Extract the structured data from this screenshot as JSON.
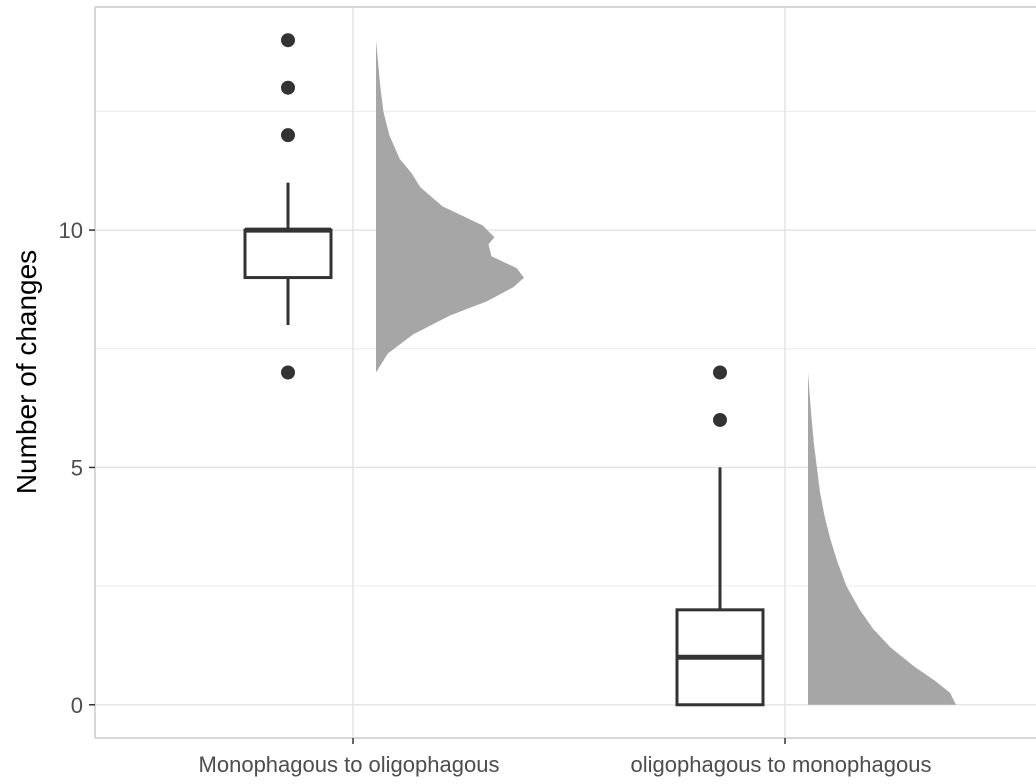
{
  "chart_data": {
    "type": "raincloud",
    "title": "",
    "xlabel": "",
    "ylabel": "Number of changes",
    "ylim": [
      -0.7,
      14.7
    ],
    "yticks": [
      0,
      5,
      10
    ],
    "ytick_labels": [
      "0",
      "5",
      "10"
    ],
    "categories": [
      "Monophagous to oligophagous",
      "oligophagous to monophagous"
    ],
    "grid": true,
    "colors": {
      "box_stroke": "#333333",
      "outlier": "#333333",
      "density_fill": "#a6a6a6",
      "grid": "#e0e0e0",
      "panel_border": "#cccccc"
    },
    "boxes": [
      {
        "category": "Monophagous to oligophagous",
        "whisker_low": 8,
        "q1": 9,
        "median": 10,
        "q3": 10,
        "whisker_high": 11,
        "outliers": [
          7,
          12,
          13,
          14
        ]
      },
      {
        "category": "oligophagous to monophagous",
        "whisker_low": 0,
        "q1": 0,
        "median": 1,
        "q3": 2,
        "whisker_high": 5,
        "outliers": [
          6,
          7
        ]
      }
    ],
    "densities": [
      {
        "category": "Monophagous to oligophagous",
        "points": [
          [
            7,
            0.0
          ],
          [
            7.4,
            0.08
          ],
          [
            7.8,
            0.25
          ],
          [
            8.2,
            0.5
          ],
          [
            8.5,
            0.75
          ],
          [
            8.8,
            0.93
          ],
          [
            9.0,
            1.0
          ],
          [
            9.2,
            0.95
          ],
          [
            9.45,
            0.78
          ],
          [
            9.7,
            0.76
          ],
          [
            9.85,
            0.8
          ],
          [
            10.1,
            0.72
          ],
          [
            10.5,
            0.45
          ],
          [
            10.9,
            0.3
          ],
          [
            11.2,
            0.24
          ],
          [
            11.5,
            0.16
          ],
          [
            12,
            0.09
          ],
          [
            12.5,
            0.05
          ],
          [
            13,
            0.03
          ],
          [
            13.5,
            0.015
          ],
          [
            14,
            0.0
          ]
        ]
      },
      {
        "category": "oligophagous to monophagous",
        "points": [
          [
            0,
            1.0
          ],
          [
            0.25,
            0.96
          ],
          [
            0.5,
            0.86
          ],
          [
            0.8,
            0.72
          ],
          [
            1.2,
            0.56
          ],
          [
            1.6,
            0.44
          ],
          [
            2.0,
            0.35
          ],
          [
            2.5,
            0.26
          ],
          [
            3,
            0.2
          ],
          [
            3.5,
            0.15
          ],
          [
            4,
            0.11
          ],
          [
            4.5,
            0.08
          ],
          [
            5,
            0.06
          ],
          [
            5.5,
            0.04
          ],
          [
            6,
            0.025
          ],
          [
            6.5,
            0.012
          ],
          [
            7,
            0.0
          ]
        ]
      }
    ]
  }
}
